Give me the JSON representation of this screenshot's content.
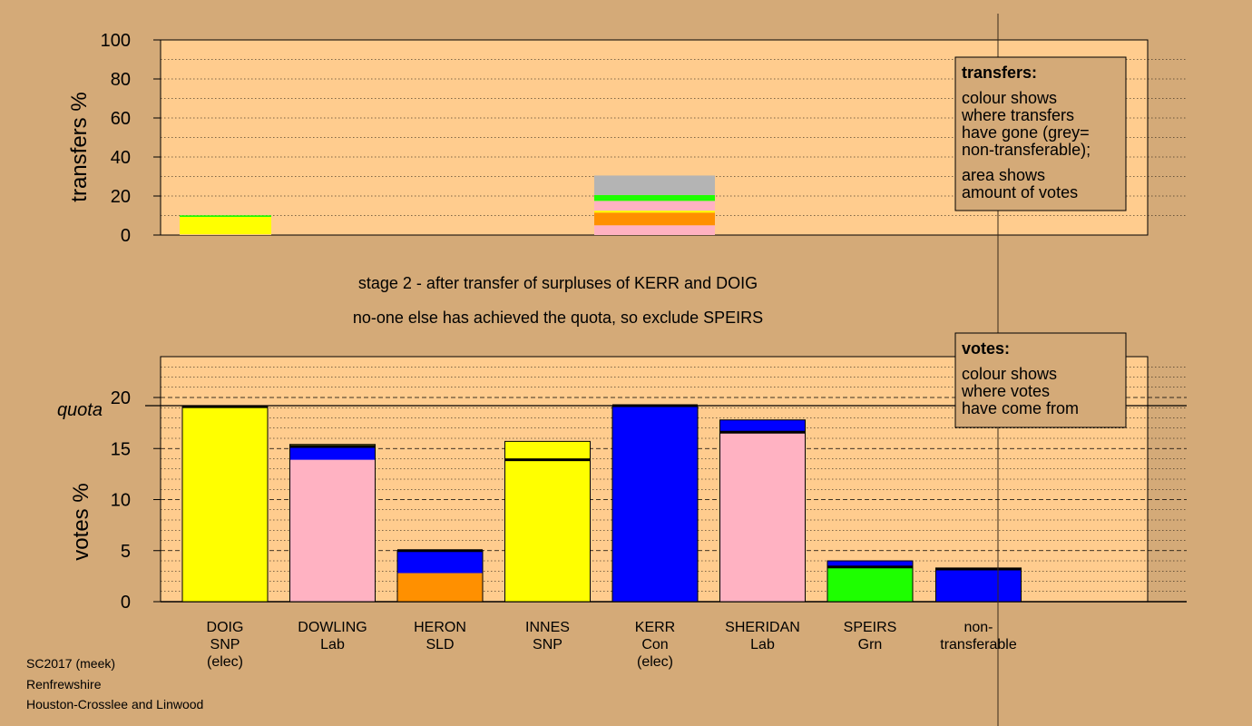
{
  "caption": {
    "line1": "stage 2 - after transfer of surpluses of KERR and DOIG",
    "line2": "no-one else has achieved the quota, so exclude SPEIRS"
  },
  "footer": {
    "line1": "SC2017 (meek)",
    "line2": "Renfrewshire",
    "line3": "Houston-Crosslee and Linwood"
  },
  "colors": {
    "background": "#d4aa78",
    "plot_bg": "#ffcc8e",
    "SNP": "#ffff00",
    "Lab": "#ffb2c2",
    "Con": "#0000ff",
    "SLD": "#ff9000",
    "Grn": "#1eff00",
    "nontransferable": "#b4b4b4"
  },
  "chart_data": [
    {
      "type": "bar",
      "stacked": true,
      "ylabel": "transfers %",
      "ylim": [
        0,
        100
      ],
      "yticks": [
        0,
        20,
        40,
        60,
        80,
        100
      ],
      "legend": {
        "title": "transfers:",
        "text1": "colour shows\nwhere transfers\nhave gone (grey=\nnon-transferable);",
        "text2": "area shows\namount of votes"
      },
      "bars": [
        {
          "position": 0,
          "segments": [
            {
              "party": "Lab",
              "value": 0.3
            },
            {
              "party": "SNP",
              "value": 9.0
            },
            {
              "party": "Grn",
              "value": 0.8
            }
          ]
        },
        {
          "position": 4,
          "segments": [
            {
              "party": "Lab",
              "value": 5.0
            },
            {
              "party": "SLD",
              "value": 6.5
            },
            {
              "party": "SNP",
              "value": 1.0
            },
            {
              "party": "Lab",
              "value": 5.0
            },
            {
              "party": "Grn",
              "value": 3.0
            },
            {
              "party": "nontransferable",
              "value": 10.0
            }
          ]
        }
      ]
    },
    {
      "type": "bar",
      "stacked": true,
      "ylabel": "votes %",
      "ylim": [
        0,
        24
      ],
      "yticks": [
        0,
        5,
        10,
        15,
        20
      ],
      "quota": 19.2,
      "quota_label": "quota",
      "legend": {
        "title": "votes:",
        "text1": "colour shows\nwhere votes\nhave come from"
      },
      "categories": [
        {
          "name": "DOIG",
          "party": "SNP",
          "status": "(elec)"
        },
        {
          "name": "DOWLING",
          "party": "Lab",
          "status": ""
        },
        {
          "name": "HERON",
          "party": "SLD",
          "status": ""
        },
        {
          "name": "INNES",
          "party": "SNP",
          "status": ""
        },
        {
          "name": "KERR",
          "party": "Con",
          "status": "(elec)"
        },
        {
          "name": "SHERIDAN",
          "party": "Lab",
          "status": ""
        },
        {
          "name": "SPEIRS",
          "party": "Grn",
          "status": ""
        },
        {
          "name": "non-",
          "party": "transferable",
          "status": ""
        }
      ],
      "bars": [
        {
          "index": 0,
          "segments": [
            {
              "party": "SNP",
              "value": 19.1
            }
          ],
          "first_pref": 19.1
        },
        {
          "index": 1,
          "segments": [
            {
              "party": "Lab",
              "value": 13.9
            },
            {
              "party": "Con",
              "value": 1.3
            },
            {
              "party": "SNP",
              "value": 0.2
            }
          ],
          "first_pref": 15.2
        },
        {
          "index": 2,
          "segments": [
            {
              "party": "SLD",
              "value": 2.8
            },
            {
              "party": "Con",
              "value": 2.2
            }
          ],
          "first_pref": 5.0
        },
        {
          "index": 3,
          "segments": [
            {
              "party": "SNP",
              "value": 13.9
            },
            {
              "party": "SNP",
              "value": 1.8
            }
          ],
          "first_pref": 13.9
        },
        {
          "index": 4,
          "segments": [
            {
              "party": "Con",
              "value": 19.2
            }
          ],
          "first_pref": 19.2
        },
        {
          "index": 5,
          "segments": [
            {
              "party": "Lab",
              "value": 16.6
            },
            {
              "party": "Con",
              "value": 1.2
            }
          ],
          "first_pref": 16.6
        },
        {
          "index": 6,
          "segments": [
            {
              "party": "Grn",
              "value": 3.4
            },
            {
              "party": "Con",
              "value": 0.6
            }
          ],
          "first_pref": 3.4
        },
        {
          "index": 7,
          "segments": [
            {
              "party": "Con",
              "value": 3.2
            },
            {
              "party": "nontransferable",
              "value": 0.1
            }
          ],
          "first_pref": 3.2
        }
      ]
    }
  ]
}
